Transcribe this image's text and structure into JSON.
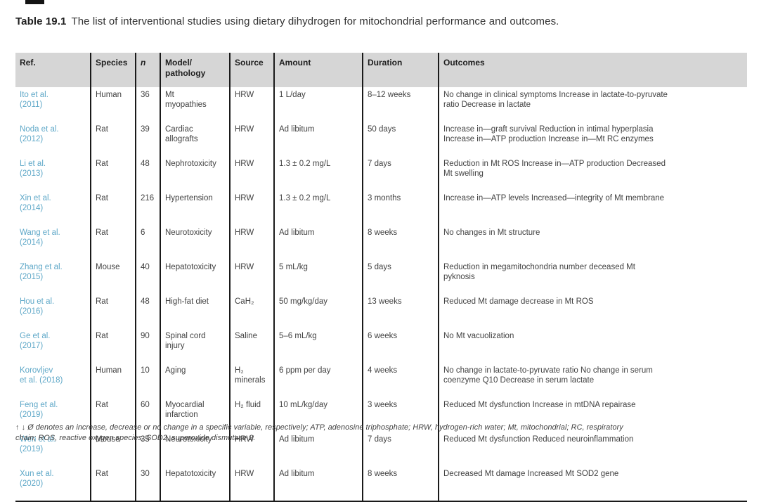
{
  "page": {
    "title_label": "Table 19.1",
    "title_text": "The list of interventional studies using dietary dihydrogen for mitochondrial performance and outcomes.",
    "footnote": "↑ ↓ Ø denotes an increase, decrease or no change in a specific variable, respectively; ATP, adenosine triphosphate; HRW, hydrogen-rich water; Mt, mitochondrial; RC, respiratory\nchain; ROS, reactive oxygen species; SOD2, superoxide dismutase 2."
  },
  "colors": {
    "citation_link": "#5fa8c8",
    "header_background": "#d6d6d6",
    "border": "#1a1a1a",
    "body_text": "#424242"
  },
  "table": {
    "columns": [
      {
        "key": "ref",
        "label": "Ref."
      },
      {
        "key": "species",
        "label": "Species"
      },
      {
        "key": "n",
        "label": "n"
      },
      {
        "key": "model",
        "label": "Model/\npathology"
      },
      {
        "key": "source",
        "label": "Source"
      },
      {
        "key": "amount",
        "label": "Amount"
      },
      {
        "key": "duration",
        "label": "Duration"
      },
      {
        "key": "outcomes",
        "label": "Outcomes"
      }
    ],
    "rows": [
      {
        "ref": "Ito et al.\n(2011)",
        "species": "Human",
        "n": "36",
        "model": "Mt\nmyopathies",
        "source": "HRW",
        "amount": "1 L/day",
        "duration": "8–12 weeks",
        "outcomes": "No change in clinical symptoms Increase in lactate-to-pyruvate\nratio Decrease in lactate"
      },
      {
        "ref": "Noda et al.\n(2012)",
        "species": "Rat",
        "n": "39",
        "model": "Cardiac\nallografts",
        "source": "HRW",
        "amount": "Ad libitum",
        "duration": "50 days",
        "outcomes": "Increase in—graft survival Reduction in intimal hyperplasia\nIncrease in—ATP production Increase in—Mt RC enzymes"
      },
      {
        "ref": "Li et al.\n(2013)",
        "species": "Rat",
        "n": "48",
        "model": "Nephrotoxicity",
        "source": "HRW",
        "amount": "1.3 ± 0.2 mg/L",
        "duration": "7 days",
        "outcomes": "Reduction in Mt ROS Increase in—ATP production Decreased\nMt swelling"
      },
      {
        "ref": "Xin et al.\n(2014)",
        "species": "Rat",
        "n": "216",
        "model": "Hypertension",
        "source": "HRW",
        "amount": "1.3 ± 0.2 mg/L",
        "duration": "3 months",
        "outcomes": "Increase in—ATP levels Increased—integrity of Mt membrane"
      },
      {
        "ref": "Wang et al.\n(2014)",
        "species": "Rat",
        "n": "6",
        "model": "Neurotoxicity",
        "source": "HRW",
        "amount": "Ad libitum",
        "duration": "8 weeks",
        "outcomes": "No changes in Mt structure"
      },
      {
        "ref": "Zhang et al.\n(2015)",
        "species": "Mouse",
        "n": "40",
        "model": "Hepatotoxicity",
        "source": "HRW",
        "amount": "5 mL/kg",
        "duration": "5 days",
        "outcomes": "Reduction in megamitochondria number deceased Mt\npyknosis"
      },
      {
        "ref": "Hou et al.\n(2016)",
        "species": "Rat",
        "n": "48",
        "model": "High-fat diet",
        "source": "CaH₂",
        "amount": "50 mg/kg/day",
        "duration": "13 weeks",
        "outcomes": "Reduced Mt damage decrease in Mt ROS"
      },
      {
        "ref": "Ge et al.\n(2017)",
        "species": "Rat",
        "n": "90",
        "model": "Spinal cord\ninjury",
        "source": "Saline",
        "amount": "5–6 mL/kg",
        "duration": "6 weeks",
        "outcomes": "No Mt vacuolization"
      },
      {
        "ref": "Korovljev\net al. (2018)",
        "species": "Human",
        "n": "10",
        "model": "Aging",
        "source": "H₂\nminerals",
        "amount": "6 ppm per day",
        "duration": "4 weeks",
        "outcomes": "No change in lactate-to-pyruvate ratio No change in serum\ncoenzyme Q10 Decrease in serum lactate"
      },
      {
        "ref": "Feng et al.\n(2019)",
        "species": "Rat",
        "n": "60",
        "model": "Myocardial\ninfarction",
        "source": "H₂ fluid",
        "amount": "10 mL/kg/day",
        "duration": "3 weeks",
        "outcomes": "Reduced Mt dysfunction Increase in mtDNA repairase"
      },
      {
        "ref": "Wen et al.\n(2019)",
        "species": "Mouse",
        "n": "35",
        "model": "Neurotoxicity",
        "source": "HRW",
        "amount": "Ad libitum",
        "duration": "7 days",
        "outcomes": "Reduced Mt dysfunction Reduced neuroinflammation"
      },
      {
        "ref": "Xun et al.\n(2020)",
        "species": "Rat",
        "n": "30",
        "model": "Hepatotoxicity",
        "source": "HRW",
        "amount": "Ad libitum",
        "duration": "8 weeks",
        "outcomes": "Decreased Mt damage Increased Mt SOD2 gene"
      }
    ]
  }
}
